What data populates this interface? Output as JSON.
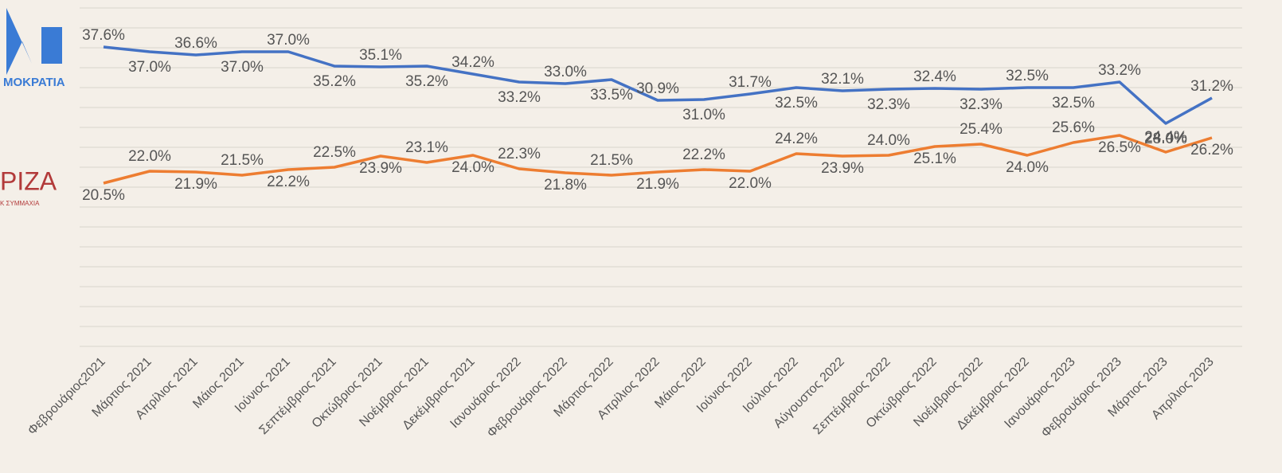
{
  "chart_data": {
    "type": "line",
    "categories": [
      "Φεβρουάριος2021",
      "Μάρτιος 2021",
      "Απρίλιος 2021",
      "Μάιος 2021",
      "Ιούνιος 2021",
      "Σεπτέμβριος 2021",
      "Οκτώβριος 2021",
      "Νοέμβριος 2021",
      "Δεκέμβριος 2021",
      "Ιανουάριος 2022",
      "Φεβρουάριος 2022",
      "Μάρτιος 2022",
      "Απρίλιος 2022",
      "Μάιος 2022",
      "Ιούνιος 2022",
      "Ιούλιος 2022",
      "Αύγουστος 2022",
      "Σεπτέμβριος 2022",
      "Οκτώβριος 2022",
      "Νοέμβριος 2022",
      "Δεκέμβριος 2022",
      "Ιανουάριος 2023",
      "Φεβρουάριος 2023",
      "Μάρτιος 2023",
      "Απρίλιος 2023"
    ],
    "series": [
      {
        "name": "ΜΟΚΡΑΤΙΑ",
        "color": "#4472c4",
        "values": [
          37.6,
          37.0,
          36.6,
          37.0,
          37.0,
          35.2,
          35.1,
          35.2,
          34.2,
          33.2,
          33.0,
          33.5,
          30.9,
          31.0,
          31.7,
          32.5,
          32.1,
          32.3,
          32.4,
          32.3,
          32.5,
          32.5,
          33.2,
          28.0,
          31.2
        ],
        "value_labels": [
          "37.6%",
          "37.0%",
          "36.6%",
          "37.0%",
          "37.0%",
          "35.2%",
          "35.1%",
          "35.2%",
          "34.2%",
          "33.2%",
          "33.0%",
          "33.5%",
          "30.9%",
          "31.0%",
          "31.7%",
          "32.5%",
          "32.1%",
          "32.3%",
          "32.4%",
          "32.3%",
          "32.5%",
          "32.5%",
          "33.2%",
          "28.0%",
          "31.2%"
        ]
      },
      {
        "name": "ΡΙΖΑ",
        "color": "#ed7d31",
        "values": [
          20.5,
          22.0,
          21.9,
          21.5,
          22.2,
          22.5,
          23.9,
          23.1,
          24.0,
          22.3,
          21.8,
          21.5,
          21.9,
          22.2,
          22.0,
          24.2,
          23.9,
          24.0,
          25.1,
          25.4,
          24.0,
          25.6,
          26.5,
          24.4,
          26.2
        ],
        "value_labels": [
          "20.5%",
          "22.0%",
          "21.9%",
          "21.5%",
          "22.2%",
          "22.5%",
          "23.9%",
          "23.1%",
          "24.0%",
          "22.3%",
          "21.8%",
          "21.5%",
          "21.9%",
          "22.2%",
          "22.0%",
          "24.2%",
          "23.9%",
          "24.0%",
          "25.1%",
          "25.4%",
          "24.0%",
          "25.6%",
          "26.5%",
          "24.4%",
          "26.2%"
        ]
      }
    ],
    "logo_subtitle": "Κ ΣΥΜΜΑΧΙΑ",
    "ylim": [
      0,
      42.5
    ],
    "yticks": [
      0,
      2.5,
      5,
      7.5,
      10,
      12.5,
      15,
      17.5,
      20,
      22.5,
      25,
      27.5,
      30,
      32.5,
      35,
      37.5,
      40,
      42.5
    ],
    "grid": true
  }
}
